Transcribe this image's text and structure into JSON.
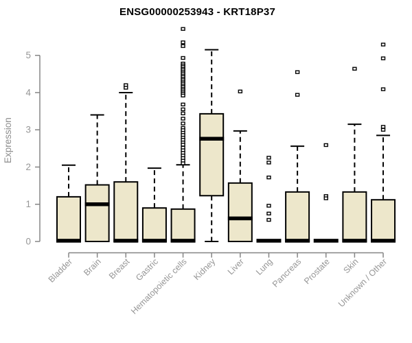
{
  "header": {
    "title": "ENSG00000253943 - KRT18P37"
  },
  "y_axis_label": "Expression",
  "chart_data": {
    "type": "boxplot",
    "title": "ENSG00000253943 - KRT18P37",
    "xlabel": "",
    "ylabel": "Expression",
    "ylim": [
      0,
      5.8
    ],
    "yticks": [
      0,
      1,
      2,
      3,
      4,
      5
    ],
    "grid": false,
    "legend": "none",
    "categories": [
      "Bladder",
      "Brain",
      "Breast",
      "Gastric",
      "Hematopoietic cells",
      "Kidney",
      "Liver",
      "Lung",
      "Pancreas",
      "Prostate",
      "Skin",
      "Unknown / Other"
    ],
    "series": [
      {
        "name": "Bladder",
        "q1": 0,
        "median": 0.02,
        "q3": 1.2,
        "whisker_low": 0,
        "whisker_high": 2.05,
        "outliers": []
      },
      {
        "name": "Brain",
        "q1": 0,
        "median": 1.0,
        "q3": 1.52,
        "whisker_low": 0,
        "whisker_high": 3.4,
        "outliers": []
      },
      {
        "name": "Breast",
        "q1": 0,
        "median": 0.02,
        "q3": 1.6,
        "whisker_low": 0,
        "whisker_high": 4.0,
        "outliers": [
          4.2,
          4.13
        ]
      },
      {
        "name": "Gastric",
        "q1": 0,
        "median": 0.02,
        "q3": 0.9,
        "whisker_low": 0,
        "whisker_high": 1.97,
        "outliers": []
      },
      {
        "name": "Hematopoietic cells",
        "q1": 0,
        "median": 0.02,
        "q3": 0.87,
        "whisker_low": 0,
        "whisker_high": 2.06,
        "outliers": [
          5.71,
          5.35,
          5.25,
          4.93,
          4.78,
          4.73,
          4.69,
          4.64,
          4.6,
          4.55,
          4.51,
          4.46,
          4.42,
          4.37,
          4.33,
          4.28,
          4.24,
          4.19,
          4.15,
          4.1,
          4.06,
          4.01,
          3.97,
          3.92,
          3.68,
          3.55,
          3.44,
          3.3,
          3.17,
          3.05,
          2.99,
          2.92,
          2.86,
          2.79,
          2.73,
          2.66,
          2.6,
          2.52,
          2.45,
          2.38,
          2.31,
          2.24,
          2.17,
          2.1
        ]
      },
      {
        "name": "Kidney",
        "q1": 1.23,
        "median": 2.76,
        "q3": 3.43,
        "whisker_low": 0,
        "whisker_high": 5.15,
        "outliers": []
      },
      {
        "name": "Liver",
        "q1": 0,
        "median": 0.62,
        "q3": 1.57,
        "whisker_low": 0,
        "whisker_high": 2.97,
        "outliers": [
          4.03
        ]
      },
      {
        "name": "Lung",
        "q1": 0,
        "median": 0.02,
        "q3": 0.02,
        "whisker_low": 0,
        "whisker_high": 0.02,
        "outliers": [
          2.25,
          2.12,
          1.72,
          0.96,
          0.75,
          0.58
        ]
      },
      {
        "name": "Pancreas",
        "q1": 0,
        "median": 0.02,
        "q3": 1.33,
        "whisker_low": 0,
        "whisker_high": 2.56,
        "outliers": [
          4.55,
          3.94
        ]
      },
      {
        "name": "Prostate",
        "q1": 0,
        "median": 0.02,
        "q3": 0.02,
        "whisker_low": 0,
        "whisker_high": 0.02,
        "outliers": [
          2.59,
          1.22,
          1.16
        ]
      },
      {
        "name": "Skin",
        "q1": 0,
        "median": 0.02,
        "q3": 1.33,
        "whisker_low": 0,
        "whisker_high": 3.15,
        "outliers": [
          4.64
        ]
      },
      {
        "name": "Unknown / Other",
        "q1": 0,
        "median": 0.02,
        "q3": 1.12,
        "whisker_low": 0,
        "whisker_high": 2.85,
        "outliers": [
          5.29,
          4.92,
          4.09,
          3.08,
          3.0
        ]
      }
    ],
    "colors": {
      "box_fill": "#EDE7CB",
      "box_border": "#000000",
      "median": "#000000",
      "outlier_stroke": "#000000",
      "outlier_fill": "#ffffff",
      "axis": "#858585",
      "tick_text": "#969696",
      "title": "#000000"
    }
  }
}
